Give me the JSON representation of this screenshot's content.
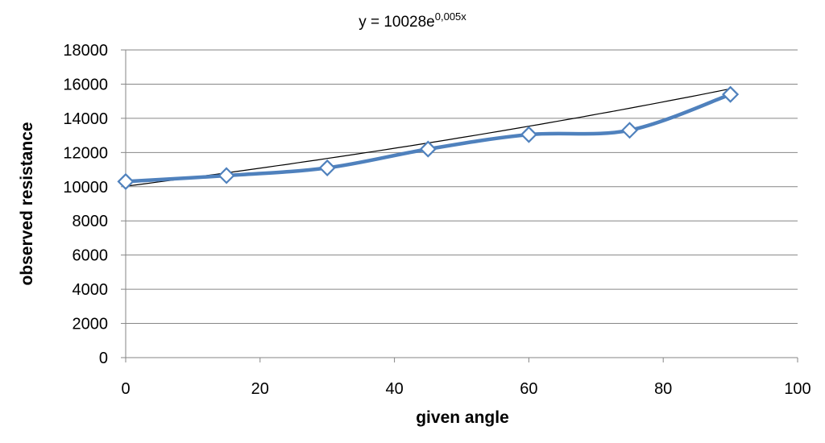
{
  "chart_data": {
    "type": "line",
    "title": "",
    "annotation": {
      "base": "y = 10028e",
      "exponent": "0,005x"
    },
    "xlabel": "given angle",
    "ylabel": "observed resistance",
    "xlim": [
      0,
      100
    ],
    "ylim": [
      0,
      18000
    ],
    "xticks": [
      0,
      20,
      40,
      60,
      80,
      100
    ],
    "yticks": [
      0,
      2000,
      4000,
      6000,
      8000,
      10000,
      12000,
      14000,
      16000,
      18000
    ],
    "grid": "horizontal",
    "legend": "none",
    "series": [
      {
        "x": [
          0,
          15,
          30,
          45,
          60,
          75,
          90
        ],
        "y": [
          10300,
          10650,
          11100,
          12200,
          13050,
          13300,
          15400
        ],
        "color": "#4F81BD",
        "marker": "diamond",
        "smooth": true
      }
    ],
    "trendline": {
      "type": "exponential",
      "a": 10028,
      "b": 0.005,
      "x_range": [
        0,
        90
      ],
      "color": "#000000"
    }
  }
}
